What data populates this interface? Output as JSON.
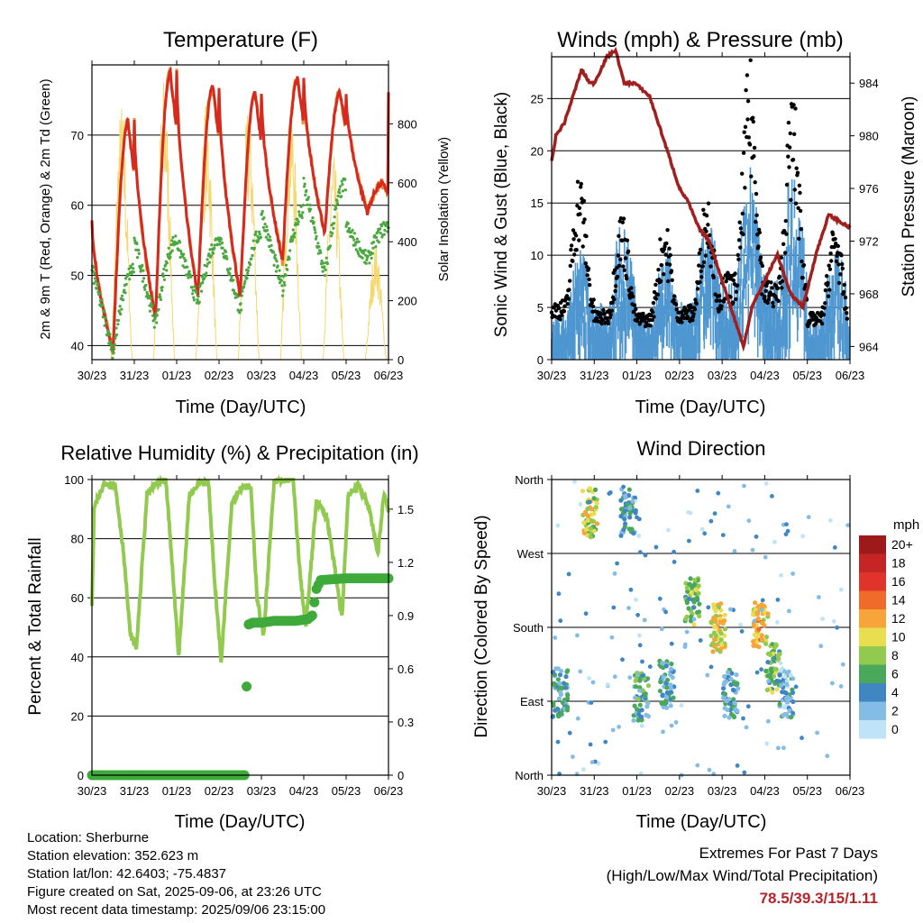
{
  "panels": {
    "temperature": {
      "title": "Temperature (F)",
      "ylabel_left": "2m & 9m T (Red, Orange) & 2m Td (Green)",
      "ylabel_right": "Solar Insolation (Yellow)",
      "xlabel": "Time (Day/UTC)"
    },
    "winds": {
      "title": "Winds (mph) & Pressure (mb)",
      "ylabel_left": "Sonic Wind & Gust (Blue, Black)",
      "ylabel_right": "Station Pressure (Maroon)",
      "xlabel": "Time (Day/UTC)"
    },
    "humidity": {
      "title": "Relative Humidity (%) & Precipitation (in)",
      "ylabel_left": "Percent & Total Rainfall",
      "xlabel": "Time (Day/UTC)"
    },
    "direction": {
      "title": "Wind Direction",
      "ylabel_left": "Direction (Colored By Speed)",
      "xlabel": "Time (Day/UTC)",
      "colorbar_title": "mph",
      "colorbar_labels": [
        "20+",
        "18",
        "16",
        "14",
        "12",
        "10",
        "8",
        "6",
        "4",
        "2",
        "0"
      ],
      "colorbar_colors": [
        "#9e1a1a",
        "#c52525",
        "#e0342b",
        "#f06a2a",
        "#f7a43a",
        "#e8de4f",
        "#92c94f",
        "#4aa85a",
        "#3f86c2",
        "#84bce6",
        "#bfe3f7"
      ]
    }
  },
  "info": {
    "location": "Location: Sherburne",
    "elevation": "Station elevation: 352.623 m",
    "latlon": "Station lat/lon: 42.6403; -75.4837",
    "created": "Figure created on Sat, 2025-09-06, at 23:26 UTC",
    "recent": "Most recent data timestamp: 2025/09/06 23:15:00"
  },
  "extremes": {
    "line1": "Extremes For Past 7 Days",
    "line2": "(High/Low/Max Wind/Total Precipitation)",
    "values": "78.5/39.3/15/1.11"
  },
  "colors": {
    "temp_2m": "#d42a20",
    "temp_9m": "#f28a2e",
    "dewpoint": "#4aa83f",
    "solar": "#f5d76e",
    "wind": "#4f97d1",
    "gust": "#000000",
    "pressure": "#a01f1f",
    "rh": "#92c94f",
    "precip": "#3faa3c"
  },
  "chart_data": [
    {
      "type": "line",
      "title": "Temperature (F)",
      "xlabel": "Time (Day/UTC)",
      "x_ticks": [
        "30/23",
        "31/23",
        "01/23",
        "02/23",
        "03/23",
        "04/23",
        "05/23",
        "06/23"
      ],
      "ylim": [
        38,
        80
      ],
      "y_ticks": [
        40,
        50,
        60,
        70
      ],
      "y2lim": [
        0,
        1000
      ],
      "y2_ticks": [
        0,
        200,
        400,
        600,
        800
      ],
      "daily_max_2m_T": [
        72,
        79,
        77,
        76,
        78,
        76,
        63
      ],
      "daily_min_2m_T": [
        39.3,
        44,
        47,
        47,
        52,
        56,
        59
      ],
      "daily_max_Td": [
        51,
        55,
        55,
        56,
        59,
        63,
        57
      ],
      "daily_min_Td": [
        39,
        43,
        46,
        45,
        48,
        50,
        52
      ],
      "daily_peak_solar": [
        880,
        970,
        900,
        880,
        890,
        700,
        400
      ],
      "end_T": 59,
      "end_Td": 56
    },
    {
      "type": "scatter",
      "title": "Winds (mph) & Pressure (mb)",
      "xlabel": "Time (Day/UTC)",
      "x_ticks": [
        "30/23",
        "31/23",
        "01/23",
        "02/23",
        "03/23",
        "04/23",
        "05/23",
        "06/23"
      ],
      "ylim": [
        0,
        29
      ],
      "y_ticks": [
        0,
        5,
        10,
        15,
        20,
        25
      ],
      "y2lim": [
        963,
        986
      ],
      "y2_ticks": [
        964,
        968,
        972,
        976,
        980,
        984
      ],
      "daily_max_gust": [
        17,
        13,
        12,
        15,
        27.5,
        24.5,
        12
      ],
      "daily_mean_wind": [
        4,
        5,
        4,
        5,
        7,
        7,
        4
      ],
      "pressure_x": [
        0,
        0.1,
        0.3,
        0.5,
        0.7,
        0.9,
        1.0,
        1.3,
        1.5,
        1.7,
        1.95,
        2.3,
        2.6,
        3.0,
        3.2,
        3.45,
        3.7,
        3.9,
        4.1,
        4.3,
        4.5,
        4.7,
        4.85,
        5.0,
        5.3,
        5.6,
        5.9,
        6.2,
        6.5,
        7.0
      ],
      "pressure_y": [
        978,
        980,
        981,
        983,
        985,
        984,
        984,
        986,
        986.5,
        984,
        984,
        983,
        980,
        976,
        975,
        973,
        972,
        970,
        968,
        966,
        964,
        967,
        968,
        969,
        971,
        968,
        967,
        971,
        974,
        973
      ]
    },
    {
      "type": "line",
      "title": "Relative Humidity (%) & Precipitation (in)",
      "xlabel": "Time (Day/UTC)",
      "x_ticks": [
        "30/23",
        "31/23",
        "01/23",
        "02/23",
        "03/23",
        "04/23",
        "05/23",
        "06/23"
      ],
      "ylim": [
        0,
        100
      ],
      "y_ticks": [
        0,
        20,
        40,
        60,
        80,
        100
      ],
      "y2lim": [
        0,
        1.667
      ],
      "y2_ticks": [
        0.0,
        0.3,
        0.6,
        0.9,
        1.2,
        1.5
      ],
      "rh_x": [
        0,
        0.05,
        0.3,
        0.55,
        0.75,
        0.9,
        1.05,
        1.3,
        1.55,
        1.75,
        1.9,
        2.05,
        2.3,
        2.55,
        2.75,
        2.9,
        3.05,
        3.3,
        3.55,
        3.75,
        3.9,
        4.05,
        4.3,
        4.55,
        4.75,
        4.9,
        5.05,
        5.3,
        5.55,
        5.75,
        5.9,
        6.05,
        6.3,
        6.55,
        6.75,
        6.9,
        7.0
      ],
      "rh_y": [
        57,
        90,
        99,
        98,
        75,
        48,
        43,
        95,
        99,
        99,
        70,
        40,
        95,
        99,
        99,
        65,
        38,
        92,
        98,
        97,
        60,
        47,
        99,
        100,
        100,
        70,
        50,
        93,
        87,
        68,
        53,
        95,
        98,
        90,
        75,
        96,
        88
      ],
      "precip_x": [
        0,
        3.6,
        3.62,
        3.65,
        3.7,
        3.8,
        4.0,
        4.3,
        4.8,
        5.1,
        5.2,
        5.3,
        5.4,
        6.0
      ],
      "precip_y": [
        0,
        0,
        0.06,
        0.5,
        0.85,
        0.86,
        0.86,
        0.87,
        0.87,
        0.88,
        0.9,
        1.05,
        1.1,
        1.11
      ]
    },
    {
      "type": "scatter",
      "title": "Wind Direction",
      "xlabel": "Time (Day/UTC)",
      "x_ticks": [
        "30/23",
        "31/23",
        "01/23",
        "02/23",
        "03/23",
        "04/23",
        "05/23",
        "06/23"
      ],
      "y_ticks": [
        "North",
        "East",
        "South",
        "West",
        "North"
      ],
      "y_tick_deg": [
        0,
        90,
        180,
        270,
        360
      ],
      "clusters": [
        {
          "day": 0.2,
          "dir": 100,
          "speed": 4
        },
        {
          "day": 0.9,
          "dir": 320,
          "speed": 9
        },
        {
          "day": 1.8,
          "dir": 320,
          "speed": 4
        },
        {
          "day": 2.1,
          "dir": 95,
          "speed": 5
        },
        {
          "day": 2.7,
          "dir": 110,
          "speed": 4
        },
        {
          "day": 3.3,
          "dir": 210,
          "speed": 7
        },
        {
          "day": 3.9,
          "dir": 180,
          "speed": 10
        },
        {
          "day": 4.2,
          "dir": 100,
          "speed": 4
        },
        {
          "day": 4.9,
          "dir": 180,
          "speed": 11
        },
        {
          "day": 5.2,
          "dir": 130,
          "speed": 7
        },
        {
          "day": 5.5,
          "dir": 100,
          "speed": 3
        }
      ]
    }
  ]
}
